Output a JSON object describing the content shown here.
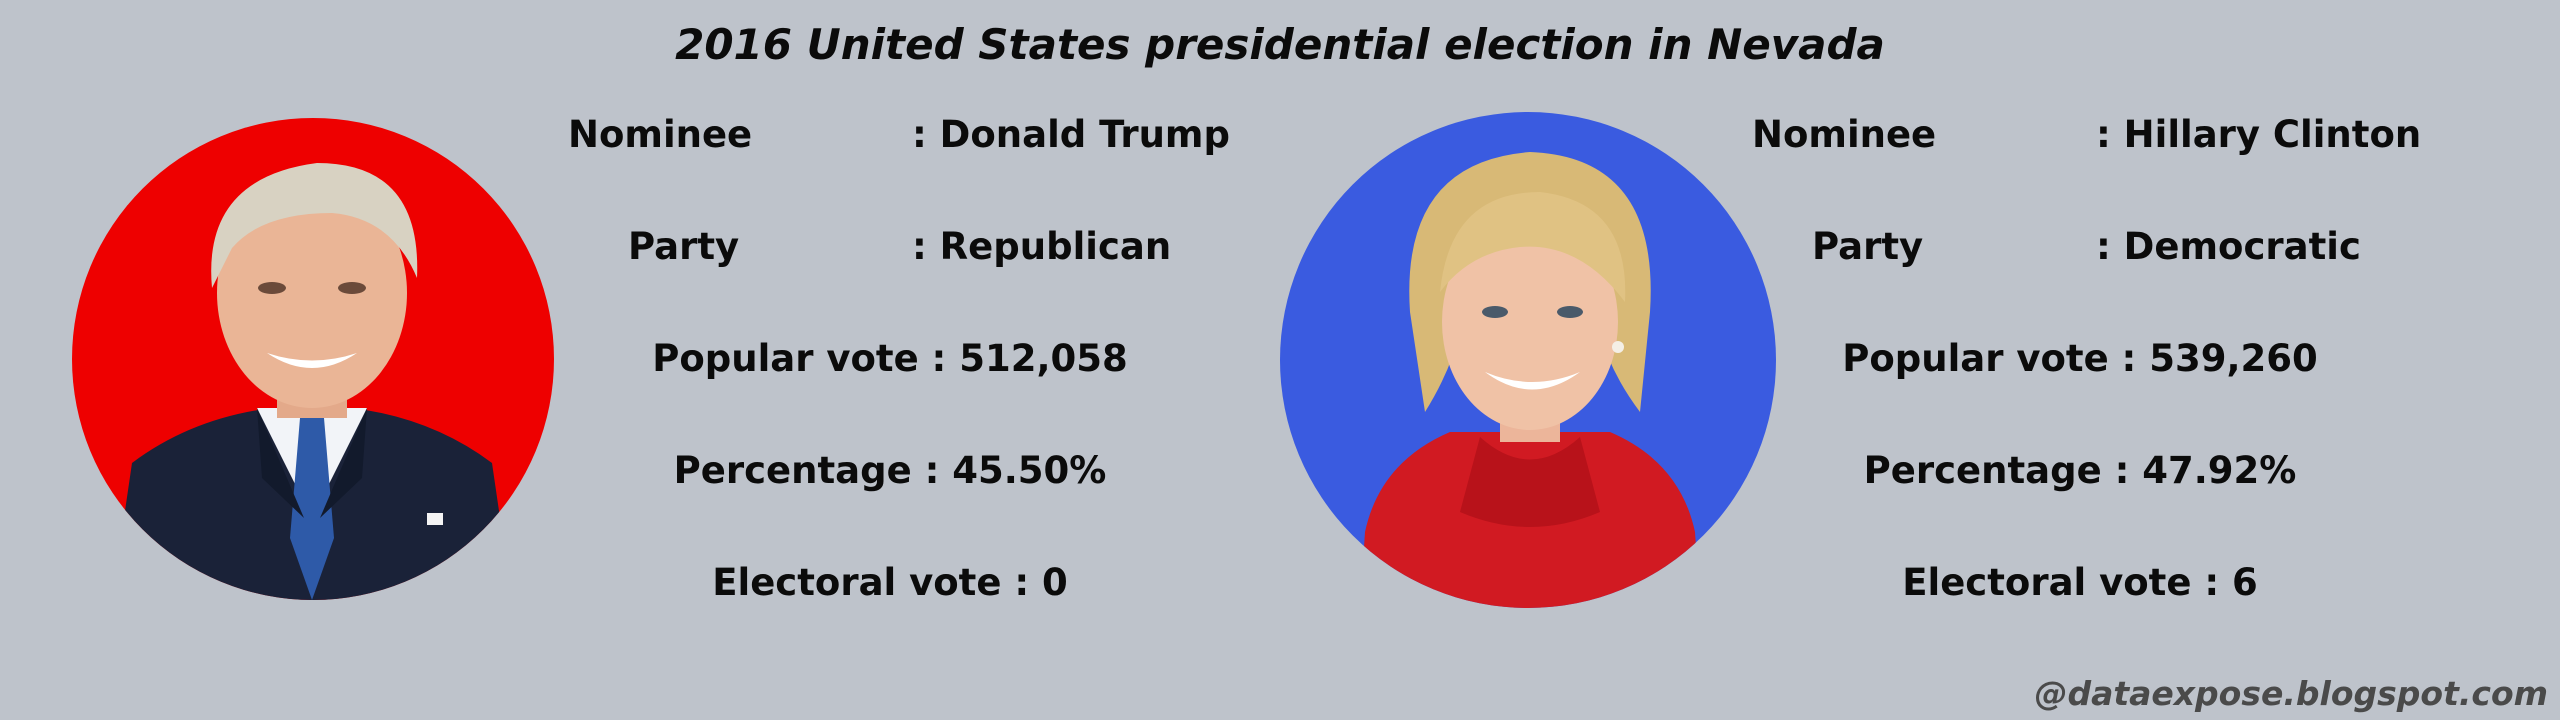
{
  "title": "2016 United States presidential election in Nevada",
  "candidates": [
    {
      "nominee_label": "Nominee",
      "nominee_value": ": Donald Trump",
      "party_label": "Party",
      "party_value": ": Republican",
      "popular_vote": "Popular vote : 512,058",
      "percentage": "Percentage : 45.50%",
      "electoral_vote": "Electoral vote : 0",
      "portrait_bg_color": "#ee0000",
      "portrait_icon": "republican-nominee-portrait"
    },
    {
      "nominee_label": "Nominee",
      "nominee_value": ": Hillary Clinton",
      "party_label": "Party",
      "party_value": ": Democratic",
      "popular_vote": "Popular vote : 539,260",
      "percentage": "Percentage : 47.92%",
      "electoral_vote": "Electoral vote : 6",
      "portrait_bg_color": "#3a5be0",
      "portrait_icon": "democratic-nominee-portrait"
    }
  ],
  "watermark": "@dataexpose.blogspot.com",
  "colors": {
    "background": "#bec3cb",
    "text": "#0b0b0b",
    "watermark": "#4a4a4a"
  }
}
